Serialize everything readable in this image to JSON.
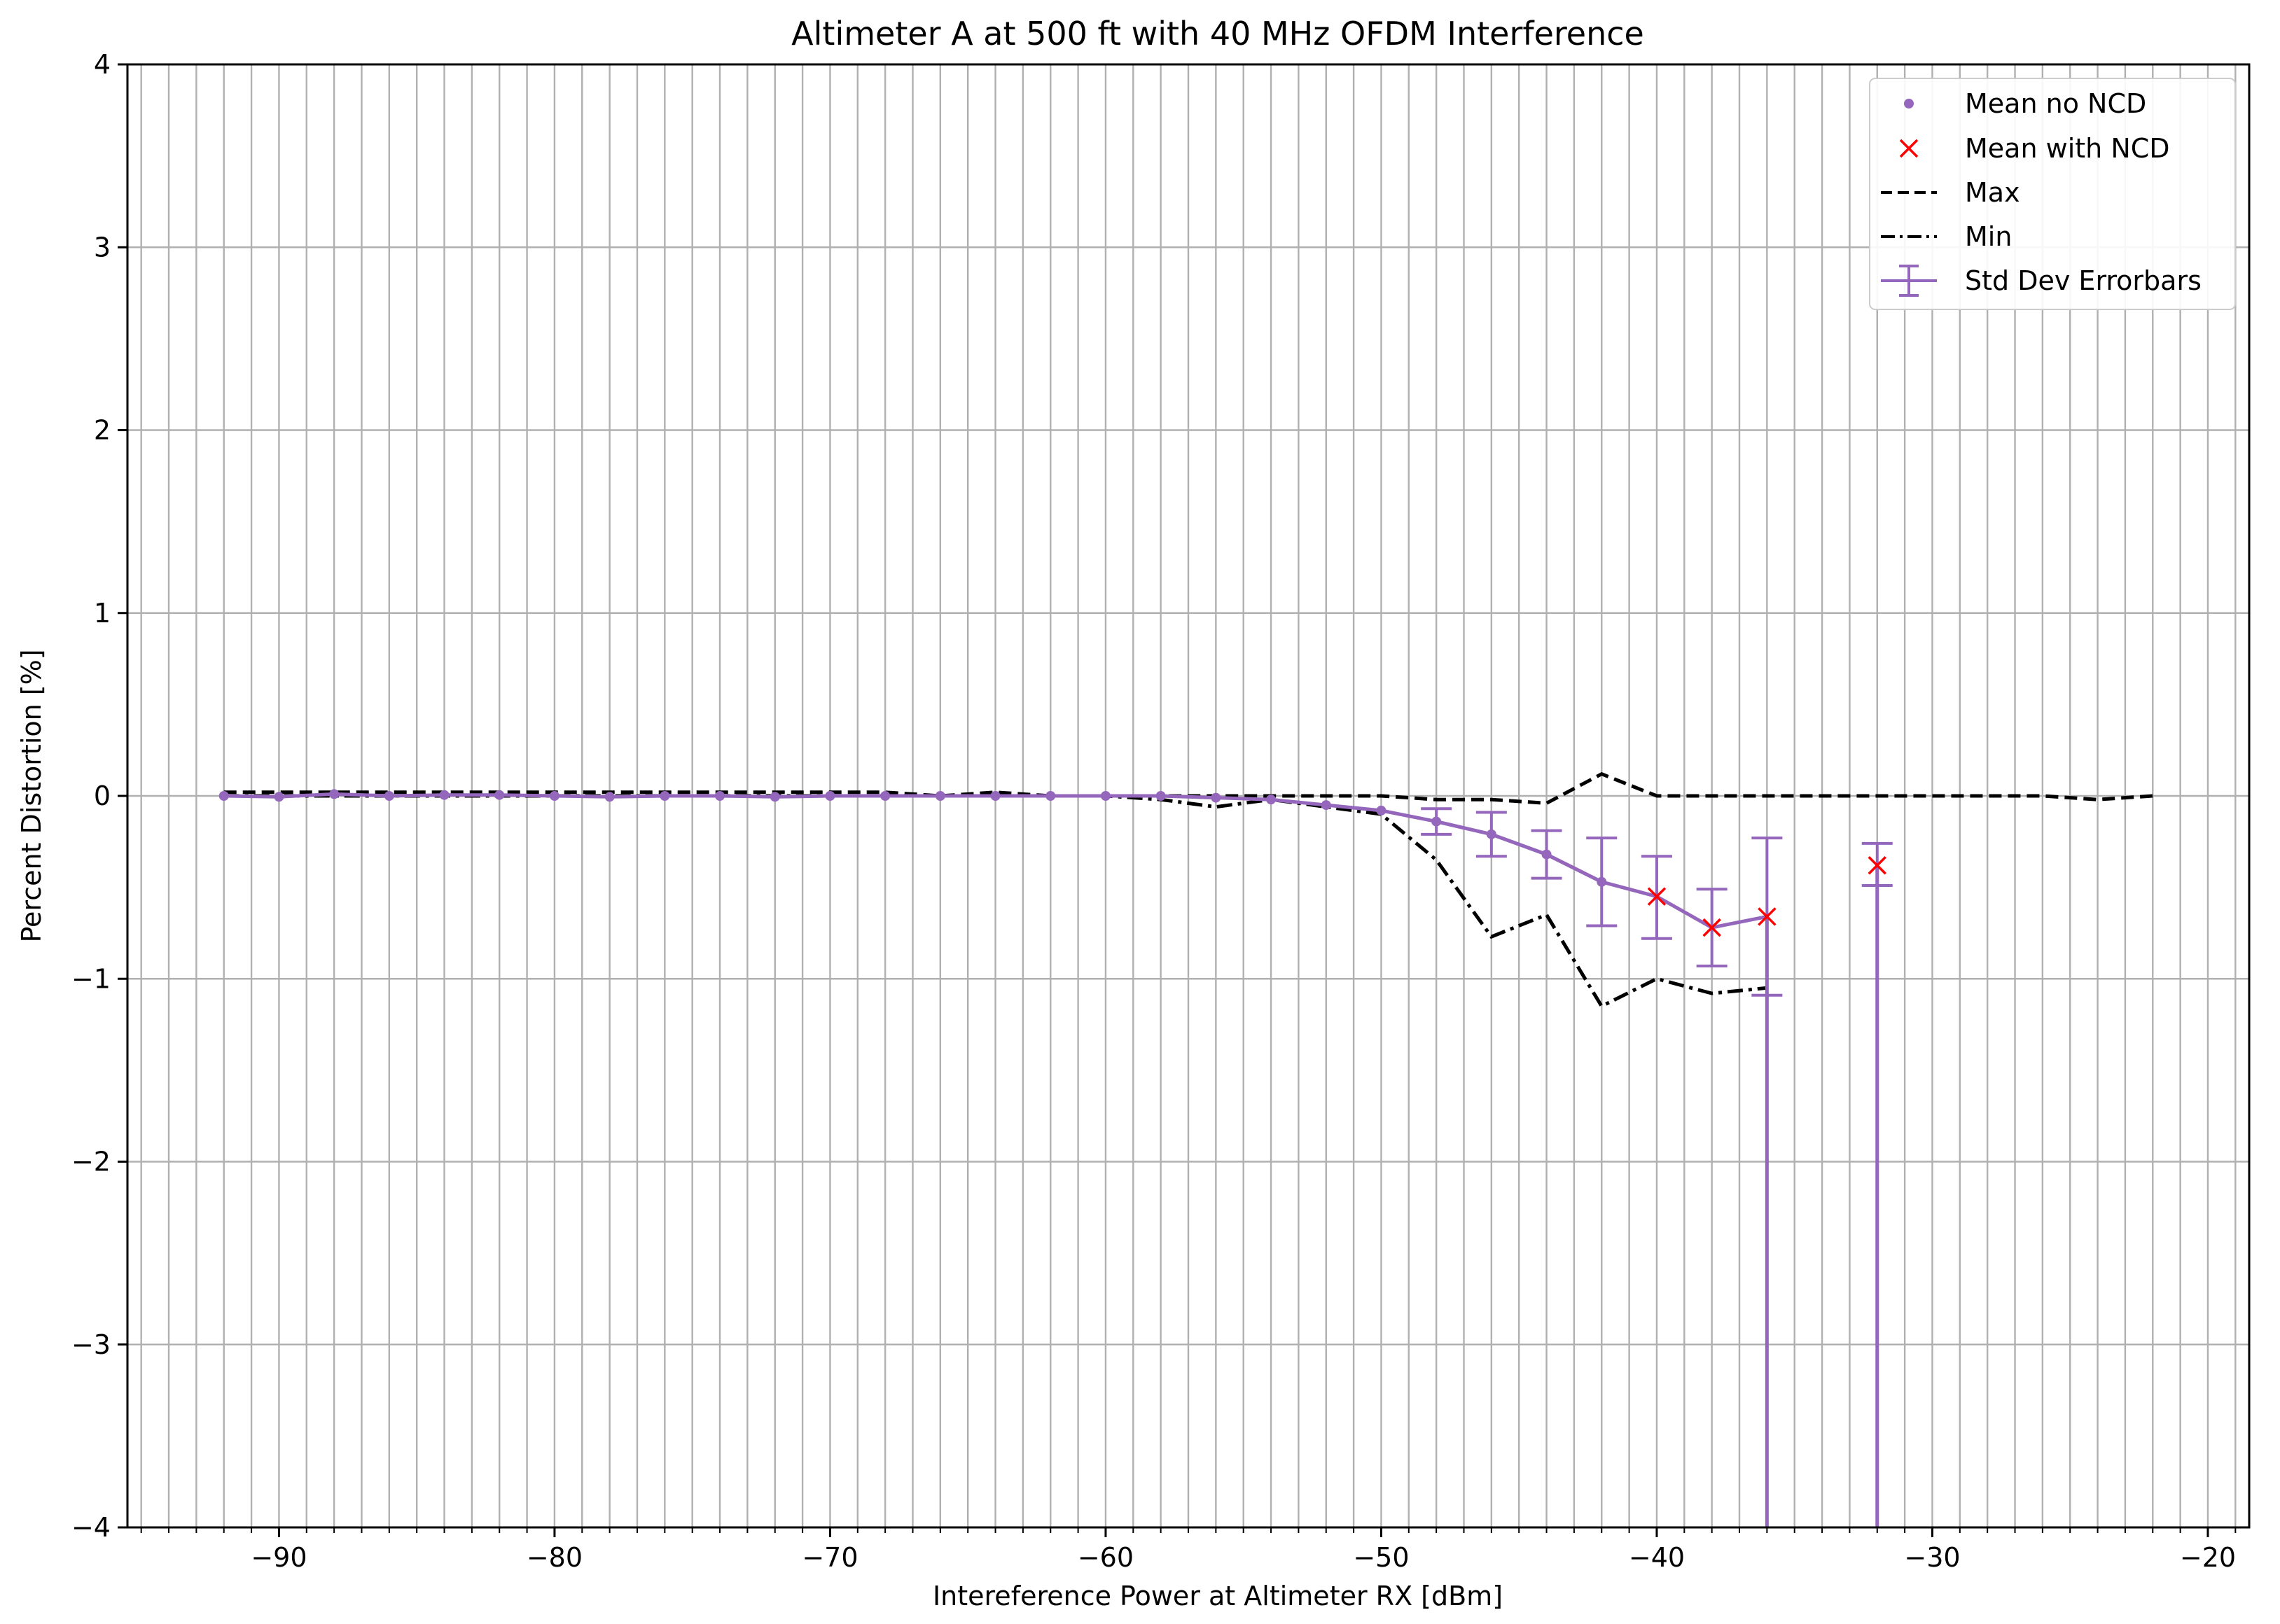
{
  "chart_data": {
    "type": "line",
    "title": "Altimeter A  at 500 ft with 40 MHz OFDM Interference",
    "xlabel": "Intereference Power at Altimeter RX [dBm]",
    "ylabel": "Percent Distortion [%]",
    "xlim": [
      -95.5,
      -18.5
    ],
    "ylim": [
      -4,
      4
    ],
    "xticks": [
      -90,
      -80,
      -70,
      -60,
      -50,
      -40,
      -30,
      -20
    ],
    "xtick_labels": [
      "−90",
      "−80",
      "−70",
      "−60",
      "−50",
      "−40",
      "−30",
      "−20"
    ],
    "yticks": [
      -4,
      -3,
      -2,
      -1,
      0,
      1,
      2,
      3,
      4
    ],
    "ytick_labels": [
      "−4",
      "−3",
      "−2",
      "−1",
      "0",
      "1",
      "2",
      "3",
      "4"
    ],
    "grid": true,
    "minor_x_grid_step": 1,
    "legend_position": "top-right",
    "series": [
      {
        "name": "Mean no NCD",
        "kind": "line-with-dot-markers",
        "color": "#9467bd",
        "x": [
          -92,
          -90,
          -88,
          -86,
          -84,
          -82,
          -80,
          -78,
          -76,
          -74,
          -72,
          -70,
          -68,
          -66,
          -64,
          -62,
          -60,
          -58,
          -56,
          -54,
          -52,
          -50,
          -48,
          -46,
          -44,
          -42
        ],
        "y": [
          0.0,
          -0.005,
          0.01,
          0.0,
          0.005,
          0.005,
          0.0,
          -0.005,
          0.0,
          0.0,
          -0.005,
          0.0,
          0.0,
          0.0,
          0.0,
          0.0,
          0.0,
          0.0,
          -0.01,
          -0.02,
          -0.05,
          -0.08,
          -0.14,
          -0.21,
          -0.32,
          -0.47
        ]
      },
      {
        "name": "Mean with NCD",
        "kind": "x-markers",
        "color": "#ff0000",
        "x": [
          -40,
          -38,
          -36,
          -32
        ],
        "y": [
          -0.55,
          -0.72,
          -0.66,
          -0.38
        ]
      },
      {
        "name": "Max",
        "kind": "dashed-line",
        "color": "#000000",
        "x": [
          -92,
          -90,
          -88,
          -86,
          -84,
          -82,
          -80,
          -78,
          -76,
          -74,
          -72,
          -70,
          -68,
          -66,
          -64,
          -62,
          -60,
          -58,
          -56,
          -54,
          -52,
          -50,
          -48,
          -46,
          -44,
          -42,
          -40,
          -38,
          -36,
          -34,
          -32,
          -30,
          -28,
          -26,
          -24,
          -22
        ],
        "y": [
          0.02,
          0.02,
          0.02,
          0.02,
          0.02,
          0.02,
          0.02,
          0.02,
          0.02,
          0.02,
          0.02,
          0.02,
          0.02,
          0.0,
          0.02,
          0.0,
          0.0,
          0.0,
          0.0,
          0.0,
          0.0,
          0.0,
          -0.02,
          -0.02,
          -0.04,
          0.12,
          0.0,
          0.0,
          0.0,
          0.0,
          0.0,
          0.0,
          0.0,
          0.0,
          -0.02,
          0.0
        ]
      },
      {
        "name": "Min",
        "kind": "dash-dot-line",
        "color": "#000000",
        "x": [
          -92,
          -90,
          -88,
          -86,
          -84,
          -82,
          -80,
          -78,
          -76,
          -74,
          -72,
          -70,
          -68,
          -66,
          -64,
          -62,
          -60,
          -58,
          -56,
          -54,
          -52,
          -50,
          -48,
          -46,
          -44,
          -42,
          -40,
          -38,
          -36
        ],
        "y": [
          0.0,
          0.0,
          0.0,
          0.0,
          0.0,
          0.0,
          0.0,
          0.0,
          0.0,
          0.0,
          0.0,
          0.0,
          0.0,
          0.0,
          0.0,
          0.0,
          0.0,
          -0.02,
          -0.06,
          -0.02,
          -0.06,
          -0.1,
          -0.35,
          -0.77,
          -0.65,
          -1.15,
          -1.0,
          -1.08,
          -1.05
        ]
      },
      {
        "name": "Std Dev Errorbars",
        "kind": "errorbar-line",
        "color": "#9467bd",
        "x": [
          -48,
          -46,
          -44,
          -42,
          -40,
          -38,
          -36,
          -32
        ],
        "y": [
          -0.14,
          -0.21,
          -0.32,
          -0.47,
          -0.55,
          -0.72,
          -0.66,
          -0.38
        ],
        "yerr_low": [
          0.07,
          0.12,
          0.13,
          0.24,
          0.23,
          0.21,
          0.43,
          0.11
        ],
        "yerr_high": [
          0.07,
          0.12,
          0.13,
          0.24,
          0.22,
          0.21,
          0.43,
          0.12
        ],
        "line_drops": [
          {
            "x": -36,
            "to_y": -4
          },
          {
            "x": -32,
            "to_y": -4
          }
        ]
      }
    ]
  }
}
